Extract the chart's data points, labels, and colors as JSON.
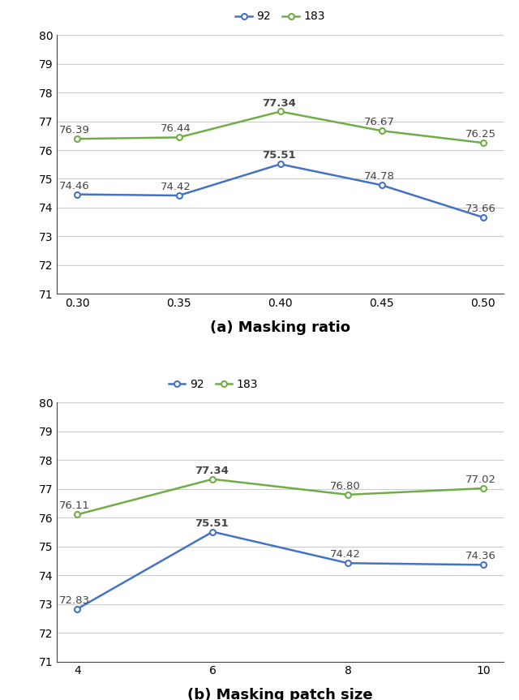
{
  "plot_a": {
    "xlabel": "(a) Masking ratio",
    "x": [
      0.3,
      0.35,
      0.4,
      0.45,
      0.5
    ],
    "x_labels": [
      "0.30",
      "0.35",
      "0.40",
      "0.45",
      "0.50"
    ],
    "series_92": [
      74.46,
      74.42,
      75.51,
      74.78,
      73.66
    ],
    "series_183": [
      76.39,
      76.44,
      77.34,
      76.67,
      76.25
    ],
    "peak_indices_92": [
      2
    ],
    "peak_indices_183": [
      2
    ],
    "ylim": [
      71,
      80
    ],
    "yticks": [
      71,
      72,
      73,
      74,
      75,
      76,
      77,
      78,
      79,
      80
    ],
    "legend_center": true
  },
  "plot_b": {
    "xlabel": "(b) Masking patch size",
    "x": [
      4,
      6,
      8,
      10
    ],
    "x_labels": [
      "4",
      "6",
      "8",
      "10"
    ],
    "series_92": [
      72.83,
      75.51,
      74.42,
      74.36
    ],
    "series_183": [
      76.11,
      77.34,
      76.8,
      77.02
    ],
    "peak_indices_92": [
      1
    ],
    "peak_indices_183": [
      1
    ],
    "ylim": [
      71,
      80
    ],
    "yticks": [
      71,
      72,
      73,
      74,
      75,
      76,
      77,
      78,
      79,
      80
    ],
    "legend_center": false
  },
  "color_92": "#4472C4",
  "color_183": "#70AD47",
  "legend_labels": [
    "92",
    "183"
  ],
  "marker": "o",
  "markersize": 5,
  "linewidth": 1.8,
  "label_fontsize": 10,
  "tick_fontsize": 10,
  "xlabel_fontsize": 13,
  "annotation_fontsize": 9.5,
  "figure_bg": "#ffffff",
  "axes_bg": "#ffffff",
  "grid_color": "#cccccc",
  "spine_color": "#444444"
}
